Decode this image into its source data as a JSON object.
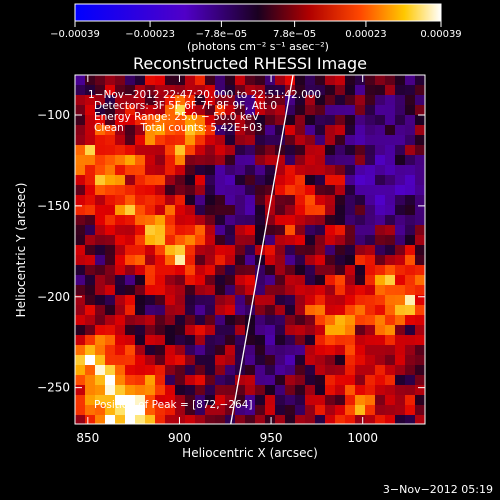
{
  "chart_data": {
    "type": "heatmap",
    "title": "Reconstructed RHESSI Image",
    "xlabel": "Heliocentric X (arcsec)",
    "ylabel": "Heliocentric Y (arcsec)",
    "xlim": [
      843,
      1034
    ],
    "ylim": [
      -270,
      -78
    ],
    "x_ticks": [
      850,
      900,
      950,
      1000
    ],
    "x_tick_labels": [
      "850",
      "900",
      "950",
      "1000"
    ],
    "y_ticks": [
      -100,
      -150,
      -200,
      -250
    ],
    "y_tick_labels": [
      "−100",
      "−150",
      "−200",
      "−250"
    ],
    "colorbar": {
      "range": [
        -0.00039,
        0.00039
      ],
      "ticks": [
        -0.00039,
        -0.00023,
        -7.8e-05,
        7.8e-05,
        0.00023,
        0.00039
      ],
      "tick_labels": [
        "−0.00039",
        "−0.00023",
        "−7.8e−05",
        "7.8e−05",
        "0.00023",
        "0.00039"
      ],
      "units": "(photons cm⁻² s⁻¹ asec⁻²)"
    },
    "annotations": {
      "time": "1−Nov−2012 22:47:20.000 to 22:51:42.000",
      "detectors": "Detectors: 3F 5F 6F 7F 8F 9F, Att 0",
      "energy": "Energy Range: 25.0 − 50.0 keV",
      "clean": "Clean     Total counts: 5.42E+03",
      "peak": "Position of Peak = [872,−264]"
    },
    "limb_line": [
      [
        928,
        -270
      ],
      [
        962,
        -78
      ]
    ],
    "bright_sources": [
      {
        "x": 872,
        "y": -262,
        "v": 1.0
      },
      {
        "x": 853,
        "y": -235,
        "v": 0.72
      },
      {
        "x": 895,
        "y": -175,
        "v": 0.62
      },
      {
        "x": 900,
        "y": -108,
        "v": 0.68
      },
      {
        "x": 855,
        "y": -125,
        "v": 0.6
      },
      {
        "x": 1020,
        "y": -200,
        "v": 0.65
      },
      {
        "x": 985,
        "y": -215,
        "v": 0.55
      },
      {
        "x": 1000,
        "y": -258,
        "v": 0.45
      },
      {
        "x": 875,
        "y": -150,
        "v": 0.45
      },
      {
        "x": 965,
        "y": -145,
        "v": 0.35
      }
    ],
    "dark_sources": [
      {
        "x": 1013,
        "y": -140,
        "v": -0.5
      },
      {
        "x": 930,
        "y": -138,
        "v": -0.4
      },
      {
        "x": 1005,
        "y": -105,
        "v": -0.3
      },
      {
        "x": 955,
        "y": -232,
        "v": -0.3
      }
    ]
  },
  "footer": {
    "date": "3−Nov−2012 05:19"
  }
}
